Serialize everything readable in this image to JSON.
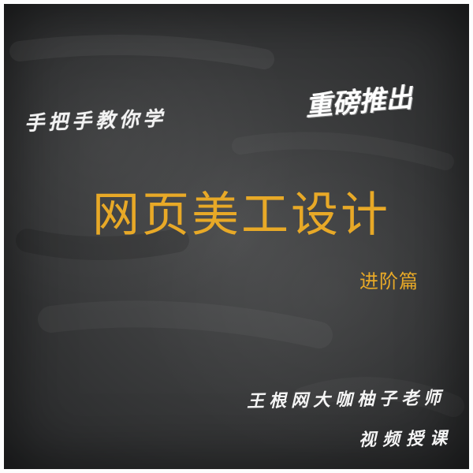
{
  "poster": {
    "tagline": "手把手教你学",
    "stamp": "重磅推出",
    "title": "网页美工设计",
    "subtitle": "进阶篇",
    "author_line": "王根网大咖柚子老师",
    "course_line": "视频授课"
  },
  "colors": {
    "board": "#3a3b3c",
    "title_accent": "#e8a927",
    "chalk_white": "#f4f4f4"
  }
}
